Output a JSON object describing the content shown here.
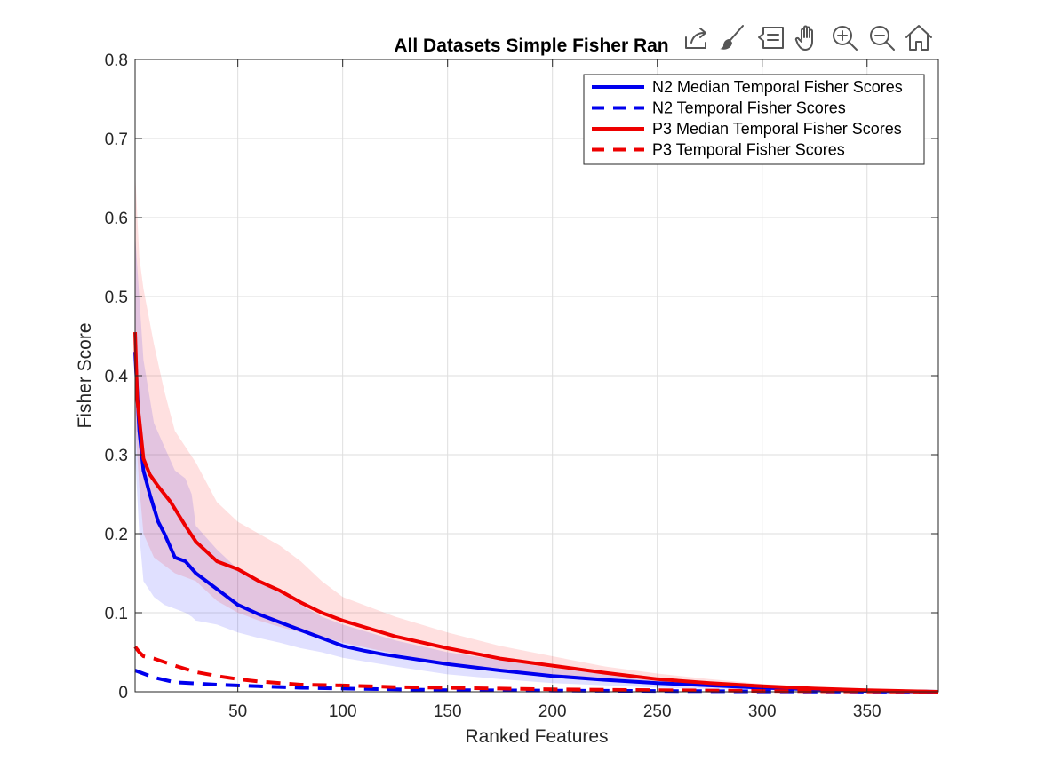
{
  "chart_data": {
    "type": "line",
    "title": "All Datasets Simple Fisher Ran",
    "xlabel": "Ranked Features",
    "ylabel": "Fisher Score",
    "xlim": [
      1,
      384
    ],
    "ylim": [
      0,
      0.8
    ],
    "xticks": [
      50,
      100,
      150,
      200,
      250,
      300,
      350
    ],
    "yticks": [
      0,
      0.1,
      0.2,
      0.3,
      0.4,
      0.5,
      0.6,
      0.7,
      0.8
    ],
    "grid": true,
    "legend_position": "top-right",
    "series": [
      {
        "name": "N2 Median Temporal Fisher Scores",
        "color": "#0000ee",
        "style": "solid",
        "x": [
          1,
          3,
          5,
          8,
          12,
          15,
          20,
          25,
          30,
          40,
          50,
          60,
          70,
          80,
          90,
          100,
          110,
          120,
          130,
          150,
          175,
          200,
          225,
          250,
          275,
          300,
          325,
          350,
          384
        ],
        "y": [
          0.43,
          0.33,
          0.28,
          0.25,
          0.215,
          0.2,
          0.17,
          0.165,
          0.15,
          0.13,
          0.11,
          0.098,
          0.088,
          0.078,
          0.068,
          0.058,
          0.052,
          0.047,
          0.043,
          0.035,
          0.027,
          0.02,
          0.015,
          0.011,
          0.008,
          0.005,
          0.003,
          0.001,
          0.0
        ]
      },
      {
        "name": "N2 Temporal Fisher Scores",
        "color": "#0000ee",
        "style": "dashed",
        "x": [
          1,
          10,
          20,
          40,
          60,
          80,
          100,
          125,
          150,
          200,
          250,
          300,
          384
        ],
        "y": [
          0.027,
          0.018,
          0.012,
          0.009,
          0.007,
          0.005,
          0.004,
          0.003,
          0.002,
          0.0015,
          0.001,
          0.0005,
          0.0
        ]
      },
      {
        "name": "P3 Median Temporal Fisher Scores",
        "color": "#ee0000",
        "style": "solid",
        "x": [
          1,
          2,
          5,
          8,
          12,
          18,
          25,
          30,
          40,
          50,
          60,
          70,
          80,
          90,
          100,
          110,
          125,
          150,
          175,
          200,
          225,
          250,
          275,
          300,
          325,
          350,
          384
        ],
        "y": [
          0.455,
          0.37,
          0.295,
          0.275,
          0.26,
          0.24,
          0.21,
          0.19,
          0.165,
          0.155,
          0.14,
          0.128,
          0.113,
          0.1,
          0.09,
          0.082,
          0.07,
          0.055,
          0.042,
          0.033,
          0.024,
          0.016,
          0.011,
          0.007,
          0.004,
          0.002,
          0.0
        ]
      },
      {
        "name": "P3 Temporal Fisher Scores",
        "color": "#ee0000",
        "style": "dashed",
        "x": [
          1,
          3,
          5,
          10,
          20,
          30,
          40,
          50,
          60,
          80,
          100,
          125,
          150,
          175,
          200,
          250,
          300,
          350,
          384
        ],
        "y": [
          0.057,
          0.05,
          0.045,
          0.042,
          0.033,
          0.025,
          0.02,
          0.016,
          0.013,
          0.009,
          0.008,
          0.006,
          0.005,
          0.004,
          0.003,
          0.002,
          0.001,
          0.0005,
          0.0
        ]
      }
    ],
    "bands": [
      {
        "series": "N2 Median Temporal Fisher Scores",
        "color": "#0000ff",
        "opacity": 0.12,
        "x": [
          1,
          3,
          5,
          10,
          15,
          20,
          25,
          28,
          30,
          40,
          50,
          60,
          70,
          80,
          90,
          100,
          125,
          150,
          175,
          200,
          250,
          300,
          350,
          384
        ],
        "upper": [
          0.58,
          0.5,
          0.42,
          0.34,
          0.31,
          0.28,
          0.27,
          0.25,
          0.21,
          0.18,
          0.155,
          0.14,
          0.125,
          0.11,
          0.095,
          0.085,
          0.065,
          0.05,
          0.04,
          0.03,
          0.017,
          0.008,
          0.003,
          0.0
        ],
        "lower": [
          0.3,
          0.2,
          0.14,
          0.12,
          0.11,
          0.105,
          0.1,
          0.095,
          0.09,
          0.085,
          0.075,
          0.068,
          0.062,
          0.055,
          0.05,
          0.043,
          0.032,
          0.022,
          0.016,
          0.011,
          0.005,
          0.002,
          0.0005,
          0.0
        ]
      },
      {
        "series": "P3 Median Temporal Fisher Scores",
        "color": "#ff0000",
        "opacity": 0.12,
        "x": [
          1,
          3,
          5,
          10,
          15,
          20,
          30,
          40,
          50,
          60,
          70,
          80,
          90,
          100,
          125,
          150,
          175,
          200,
          225,
          250,
          275,
          300,
          325,
          350,
          384
        ],
        "upper": [
          0.66,
          0.55,
          0.51,
          0.44,
          0.38,
          0.33,
          0.29,
          0.24,
          0.215,
          0.2,
          0.185,
          0.165,
          0.14,
          0.12,
          0.095,
          0.075,
          0.058,
          0.045,
          0.032,
          0.023,
          0.016,
          0.01,
          0.006,
          0.003,
          0.0
        ],
        "lower": [
          0.34,
          0.26,
          0.2,
          0.17,
          0.16,
          0.15,
          0.14,
          0.115,
          0.1,
          0.09,
          0.082,
          0.075,
          0.07,
          0.062,
          0.048,
          0.036,
          0.028,
          0.021,
          0.015,
          0.01,
          0.006,
          0.003,
          0.0015,
          0.0005,
          0.0
        ]
      }
    ]
  },
  "toolbar": {
    "icons": [
      "export-icon",
      "brush-icon",
      "datatip-icon",
      "pan-icon",
      "zoom-in-icon",
      "zoom-out-icon",
      "home-icon"
    ]
  }
}
